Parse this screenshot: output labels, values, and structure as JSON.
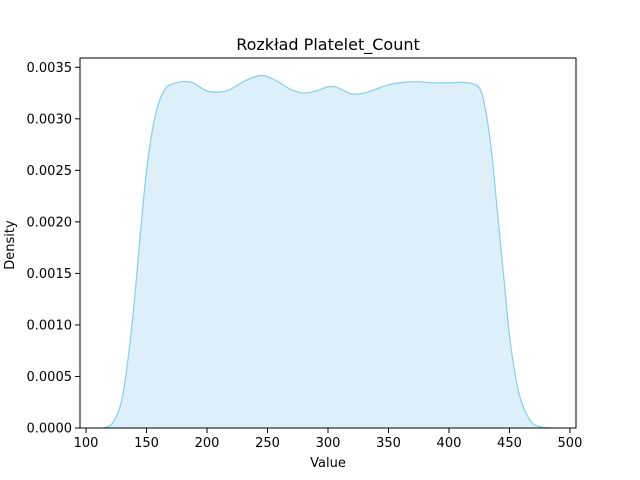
{
  "chart_data": {
    "type": "area",
    "title": "Rozkład Platelet_Count",
    "xlabel": "Value",
    "ylabel": "Density",
    "xlim": [
      95,
      505
    ],
    "ylim": [
      0,
      0.00359
    ],
    "xticks": [
      "100",
      "150",
      "200",
      "250",
      "300",
      "350",
      "400",
      "450",
      "500"
    ],
    "yticks": [
      "0.0000",
      "0.0005",
      "0.0010",
      "0.0015",
      "0.0020",
      "0.0025",
      "0.0030",
      "0.0035"
    ],
    "grid": false,
    "line_color": "#87ceeb",
    "fill_color": "#ddf0f9",
    "series": [
      {
        "x": [
          114,
          122,
          130,
          138,
          145,
          150,
          155,
          160,
          166,
          172,
          180,
          188,
          200,
          212,
          220,
          230,
          240,
          246,
          252,
          260,
          270,
          280,
          290,
          300,
          306,
          312,
          320,
          330,
          340,
          350,
          360,
          372,
          385,
          400,
          415,
          425,
          430,
          435,
          440,
          445,
          450,
          455,
          460,
          468,
          476,
          484
        ],
        "y": [
          0.0,
          5e-05,
          0.0003,
          0.001,
          0.0019,
          0.0025,
          0.0029,
          0.00315,
          0.0033,
          0.00334,
          0.00336,
          0.00335,
          0.00327,
          0.00326,
          0.00329,
          0.00336,
          0.00341,
          0.00342,
          0.0034,
          0.00335,
          0.00328,
          0.00325,
          0.00327,
          0.00331,
          0.00331,
          0.00328,
          0.00324,
          0.00325,
          0.00329,
          0.00333,
          0.00335,
          0.00336,
          0.00335,
          0.00335,
          0.00335,
          0.0033,
          0.0031,
          0.0027,
          0.0021,
          0.0015,
          0.0009,
          0.0005,
          0.00025,
          6e-05,
          1e-05,
          0.0
        ]
      }
    ]
  }
}
